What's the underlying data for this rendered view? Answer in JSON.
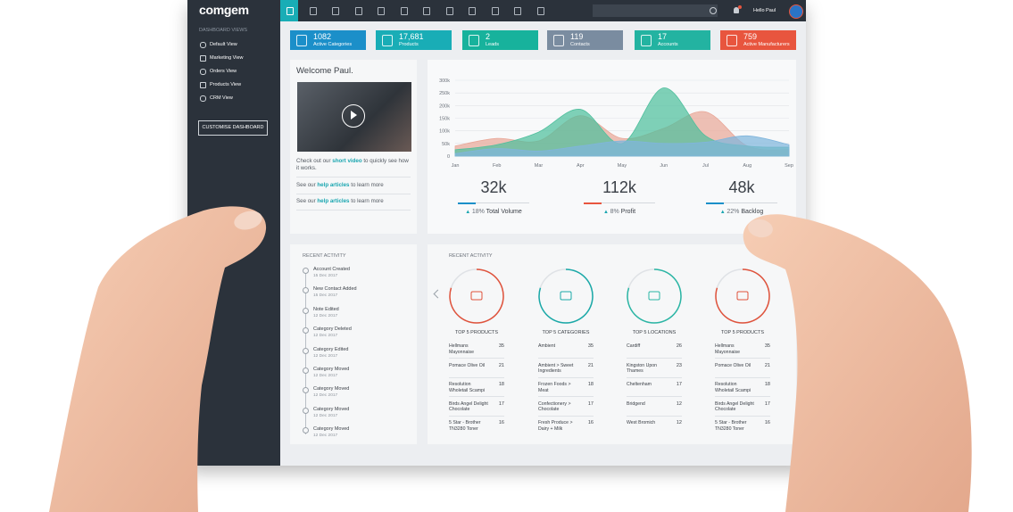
{
  "brand": "comgem",
  "sidebar": {
    "heading": "DASHBOARD VIEWS",
    "items": [
      "Default View",
      "Marketing View",
      "Orders View",
      "Products View",
      "CRM View"
    ],
    "button": "CUSTOMISE DASHBOARD"
  },
  "topbar": {
    "greeting": "Hello Paul"
  },
  "stats": [
    {
      "value": "1082",
      "label": "Active Categories",
      "color": "#1b8fc9"
    },
    {
      "value": "17,681",
      "label": "Products",
      "color": "#19adb6"
    },
    {
      "value": "2",
      "label": "Leads",
      "color": "#17b29c"
    },
    {
      "value": "119",
      "label": "Contacts",
      "color": "#7a8ca0"
    },
    {
      "value": "17",
      "label": "Accounts",
      "color": "#23b3a1"
    },
    {
      "value": "759",
      "label": "Active Manufacturers",
      "color": "#e8553e"
    }
  ],
  "welcome": {
    "title": "Welcome Paul.",
    "lines": [
      [
        "Check out our ",
        "short video",
        " to quickly see how it works."
      ],
      [
        "See our ",
        "help articles",
        " to learn more"
      ],
      [
        "See our ",
        "help articles",
        " to learn more"
      ]
    ]
  },
  "chart": {
    "type": "area",
    "categories": [
      "Jan",
      "Feb",
      "Mar",
      "Apr",
      "May",
      "Jun",
      "Jul",
      "Aug",
      "Sep"
    ],
    "ylim": [
      0,
      300000
    ],
    "yticks": [
      {
        "value": 0,
        "label": "0"
      },
      {
        "value": 50000,
        "label": "50k"
      },
      {
        "value": 100000,
        "label": "100k"
      },
      {
        "value": 150000,
        "label": "150k"
      },
      {
        "value": 200000,
        "label": "200k"
      },
      {
        "value": 250000,
        "label": "250k"
      },
      {
        "value": 300000,
        "label": "300k"
      }
    ],
    "grid": true,
    "series": [
      {
        "color": "#e9a798",
        "values": [
          40000,
          70000,
          60000,
          160000,
          70000,
          110000,
          175000,
          40000,
          25000
        ]
      },
      {
        "color": "#4fbf9d",
        "values": [
          25000,
          45000,
          95000,
          185000,
          50000,
          270000,
          80000,
          40000,
          35000
        ]
      },
      {
        "color": "#80b5dc",
        "values": [
          10000,
          30000,
          20000,
          40000,
          60000,
          50000,
          55000,
          80000,
          45000
        ]
      }
    ]
  },
  "kpis": [
    {
      "value": "32k",
      "change": "18%",
      "label": "Total Volume",
      "color": "#1b8fc9"
    },
    {
      "value": "112k",
      "change": "8%",
      "label": "Profit",
      "color": "#e8553e"
    },
    {
      "value": "48k",
      "change": "22%",
      "label": "Backlog",
      "color": "#1b8fc9"
    }
  ],
  "activity": {
    "title": "RECENT ACTIVITY",
    "items": [
      {
        "title": "Account Created",
        "date": "15 Dec 2017"
      },
      {
        "title": "New Contact Added",
        "date": "15 Dec 2017"
      },
      {
        "title": "Note Edited",
        "date": "12 Dec 2017"
      },
      {
        "title": "Category Deleted",
        "date": "12 Dec 2017"
      },
      {
        "title": "Category Edited",
        "date": "12 Dec 2017"
      },
      {
        "title": "Category Moved",
        "date": "12 Dec 2017"
      },
      {
        "title": "Category Moved",
        "date": "12 Dec 2017"
      },
      {
        "title": "Category Moved",
        "date": "12 Dec 2017"
      },
      {
        "title": "Category Moved",
        "date": "12 Dec 2017"
      }
    ]
  },
  "top5": {
    "title": "RECENT ACTIVITY",
    "cards": [
      {
        "title": "TOP 5 PRODUCTS",
        "color": "#e0533c",
        "rows": [
          [
            "Hellmans Mayonnaise",
            35
          ],
          [
            "Pomace Olive Oil",
            21
          ],
          [
            "Resolution Wholetail Scampi",
            18
          ],
          [
            "Birds Angel Delight Chocolate",
            17
          ],
          [
            "5 Star - Brother TN3280 Toner",
            16
          ]
        ]
      },
      {
        "title": "TOP 5 CATEGORIES",
        "color": "#1aa9a8",
        "rows": [
          [
            "Ambient",
            35
          ],
          [
            "Ambient > Sweet Ingredients",
            21
          ],
          [
            "Frozen Foods > Meat",
            18
          ],
          [
            "Confectionery > Chocolate",
            17
          ],
          [
            "Fresh Produce > Dairy + Milk",
            16
          ]
        ]
      },
      {
        "title": "TOP 5 LOCATIONS",
        "color": "#2bb6a5",
        "rows": [
          [
            "Cardiff",
            26
          ],
          [
            "Kingston Upon Thames",
            23
          ],
          [
            "Cheltenham",
            17
          ],
          [
            "Bridgend",
            12
          ],
          [
            "West Bromich",
            12
          ]
        ]
      },
      {
        "title": "TOP 5 PRODUCTS",
        "color": "#e0533c",
        "rows": [
          [
            "Hellmans Mayonnaise",
            35
          ],
          [
            "Pomace Olive Oil",
            21
          ],
          [
            "Resolution Wholetail Scampi",
            18
          ],
          [
            "Birds Angel Delight Chocolate",
            17
          ],
          [
            "5 Star - Brother TN3280 Toner",
            16
          ]
        ]
      }
    ]
  }
}
